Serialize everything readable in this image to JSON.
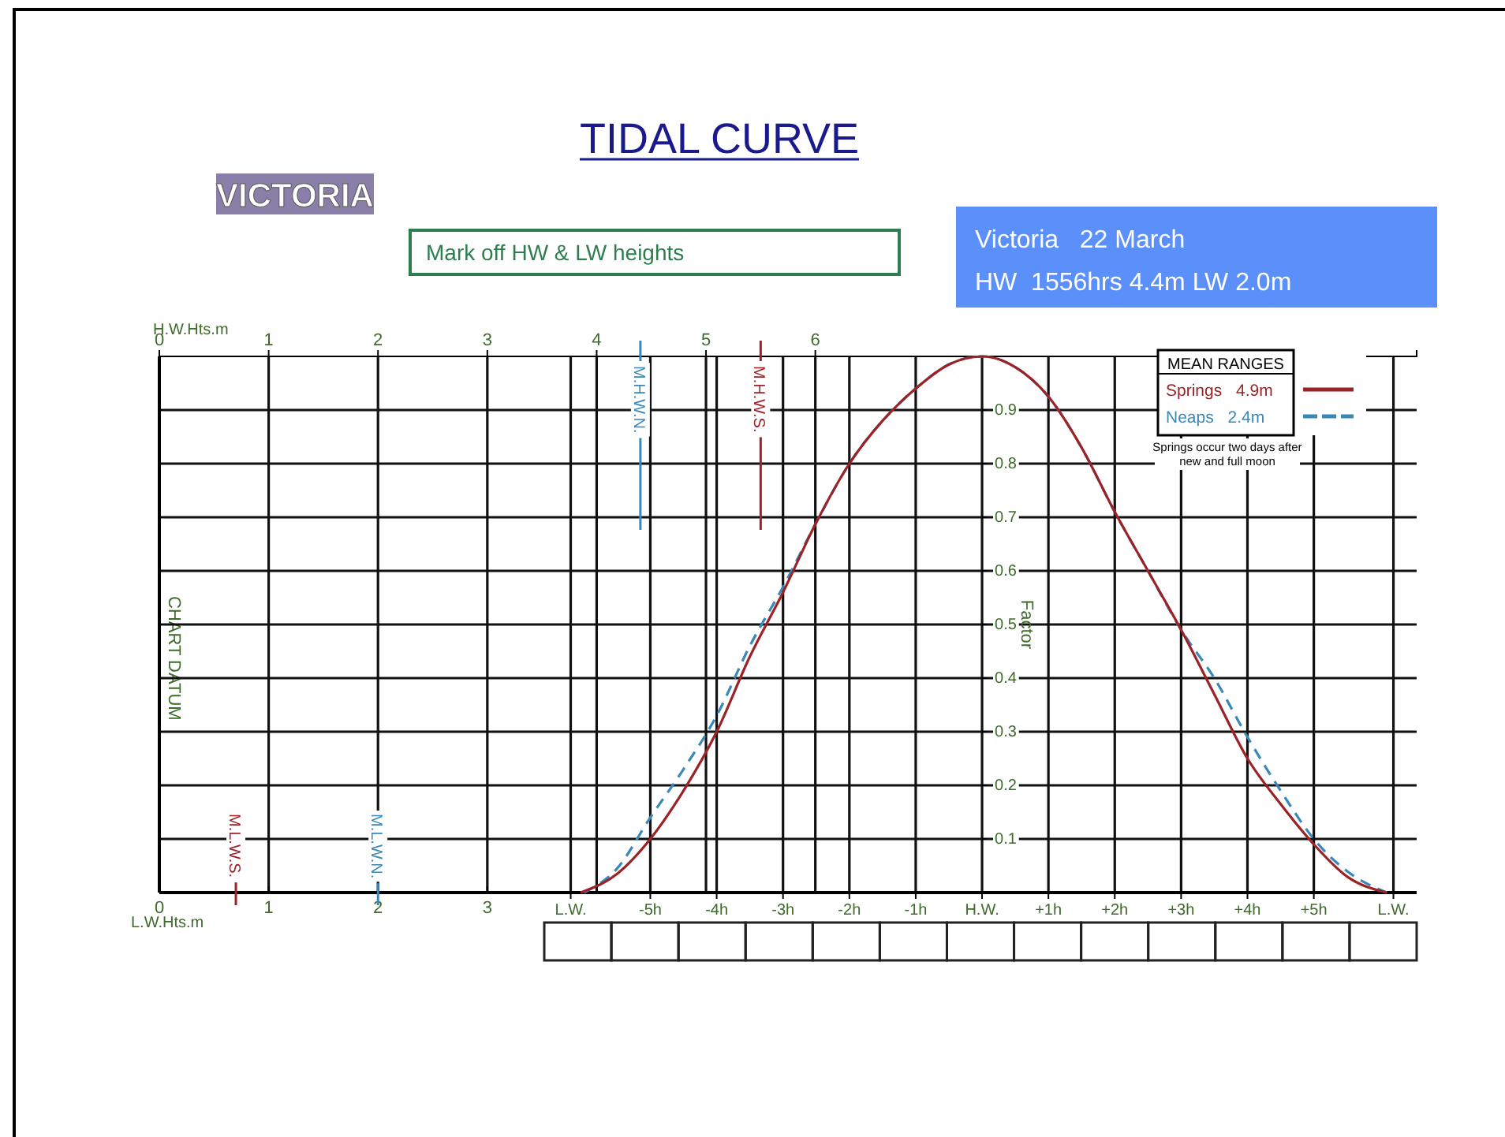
{
  "chart_data": {
    "type": "line",
    "title": "TIDAL CURVE",
    "legend_title": "MEAN RANGES",
    "ylabel": "Factor",
    "x2label": "H.W.Hts.m",
    "annotations": [
      "VICTORIA",
      "Mark off HW & LW heights",
      "Victoria   22 March",
      "HW  1556hrs 4.4m LW 2.0m",
      "CHART DATUM",
      "Springs occur two days after new and full moon",
      "L.W.Hts.m",
      "0",
      "1",
      "2",
      "3"
    ],
    "series": [
      {
        "name": "Springs 4.9m",
        "color": "#9b2226",
        "line_style": "solid",
        "x": [
          -6.05,
          -5.5,
          -5,
          -4.5,
          -4,
          -3.5,
          -3,
          -2.5,
          -2,
          -1.5,
          -1,
          -0.5,
          0,
          0.5,
          1,
          1.5,
          2,
          2.5,
          3,
          3.5,
          4,
          4.5,
          5,
          5.5,
          6.1
        ],
        "values": [
          0,
          0.035,
          0.1,
          0.19,
          0.3,
          0.44,
          0.56,
          0.69,
          0.8,
          0.88,
          0.94,
          0.985,
          1,
          0.98,
          0.925,
          0.83,
          0.71,
          0.6,
          0.49,
          0.37,
          0.25,
          0.165,
          0.09,
          0.03,
          0
        ]
      },
      {
        "name": "Neaps 2.4m",
        "color": "#3a88b8",
        "line_style": "dashed",
        "x": [
          -6,
          -5.5,
          -5,
          -4.5,
          -4,
          -3.5,
          -3,
          -2.5,
          -2,
          -1.5,
          -1,
          -0.5,
          0,
          0.5,
          1,
          1.5,
          2,
          2.5,
          3,
          3.5,
          4,
          4.5,
          5,
          5.5,
          6.1
        ],
        "values": [
          0,
          0.045,
          0.14,
          0.23,
          0.33,
          0.46,
          0.57,
          0.69,
          0.8,
          0.88,
          0.94,
          0.985,
          1,
          0.98,
          0.925,
          0.83,
          0.71,
          0.6,
          0.49,
          0.4,
          0.29,
          0.19,
          0.1,
          0.04,
          0
        ]
      }
    ],
    "xlim": [
      -12.4,
      6.55
    ],
    "xticks": [
      {
        "value": -6.2,
        "label": "L.W."
      },
      {
        "value": -5,
        "label": "-5h"
      },
      {
        "value": -4,
        "label": "-4h"
      },
      {
        "value": -3,
        "label": "-3h"
      },
      {
        "value": -2,
        "label": "-2h"
      },
      {
        "value": -1,
        "label": "-1h"
      },
      {
        "value": 0,
        "label": "H.W."
      },
      {
        "value": 1,
        "label": "+1h"
      },
      {
        "value": 2,
        "label": "+2h"
      },
      {
        "value": 3,
        "label": "+3h"
      },
      {
        "value": 4,
        "label": "+4h"
      },
      {
        "value": 5,
        "label": "+5h"
      },
      {
        "value": 6.2,
        "label": "L.W."
      }
    ],
    "x2lim": [
      0,
      11.5
    ],
    "x2ticks": [
      0,
      1,
      2,
      3,
      4,
      5,
      6
    ],
    "ylim": [
      0,
      1
    ],
    "yticks": [
      0.1,
      0.2,
      0.3,
      0.4,
      0.5,
      0.6,
      0.7,
      0.8,
      0.9
    ],
    "ref_lines": [
      {
        "axis": "x2",
        "value": 4.4,
        "label": "M.H.W.N.",
        "color": "#3a88b8"
      },
      {
        "axis": "x2",
        "value": 5.5,
        "label": "M.H.W.S.",
        "color": "#9b2226"
      },
      {
        "axis": "x2",
        "value": 2.0,
        "label": "M.L.W.N.",
        "color": "#3a88b8"
      },
      {
        "axis": "x2",
        "value": 0.7,
        "label": "M.L.W.S.",
        "color": "#9b2226"
      }
    ],
    "grid": true,
    "legend": "top right"
  }
}
